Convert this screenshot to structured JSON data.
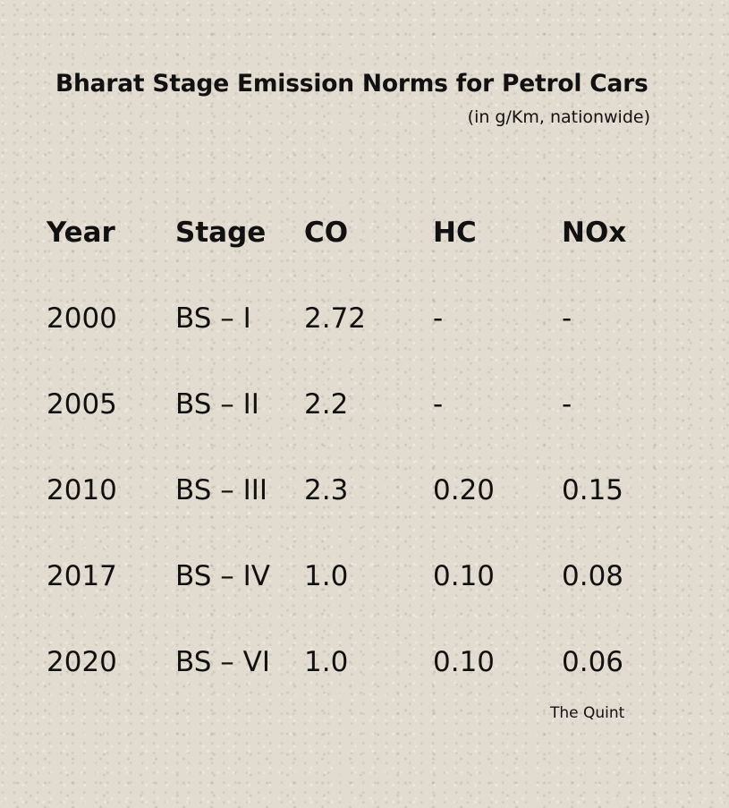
{
  "chart_data": {
    "type": "table",
    "title": "Bharat Stage Emission Norms for Petrol Cars",
    "subtitle": "(in g/Km, nationwide)",
    "columns": [
      "Year",
      "Stage",
      "CO",
      "HC",
      "NOx"
    ],
    "rows": [
      [
        "2000",
        "BS – I",
        "2.72",
        "-",
        "-"
      ],
      [
        "2005",
        "BS – II",
        "2.2",
        "-",
        "-"
      ],
      [
        "2010",
        "BS – III",
        "2.3",
        "0.20",
        "0.15"
      ],
      [
        "2017",
        "BS – IV",
        "1.0",
        "0.10",
        "0.08"
      ],
      [
        "2020",
        "BS – VI",
        "1.0",
        "0.10",
        "0.06"
      ]
    ],
    "source": "The Quint"
  }
}
